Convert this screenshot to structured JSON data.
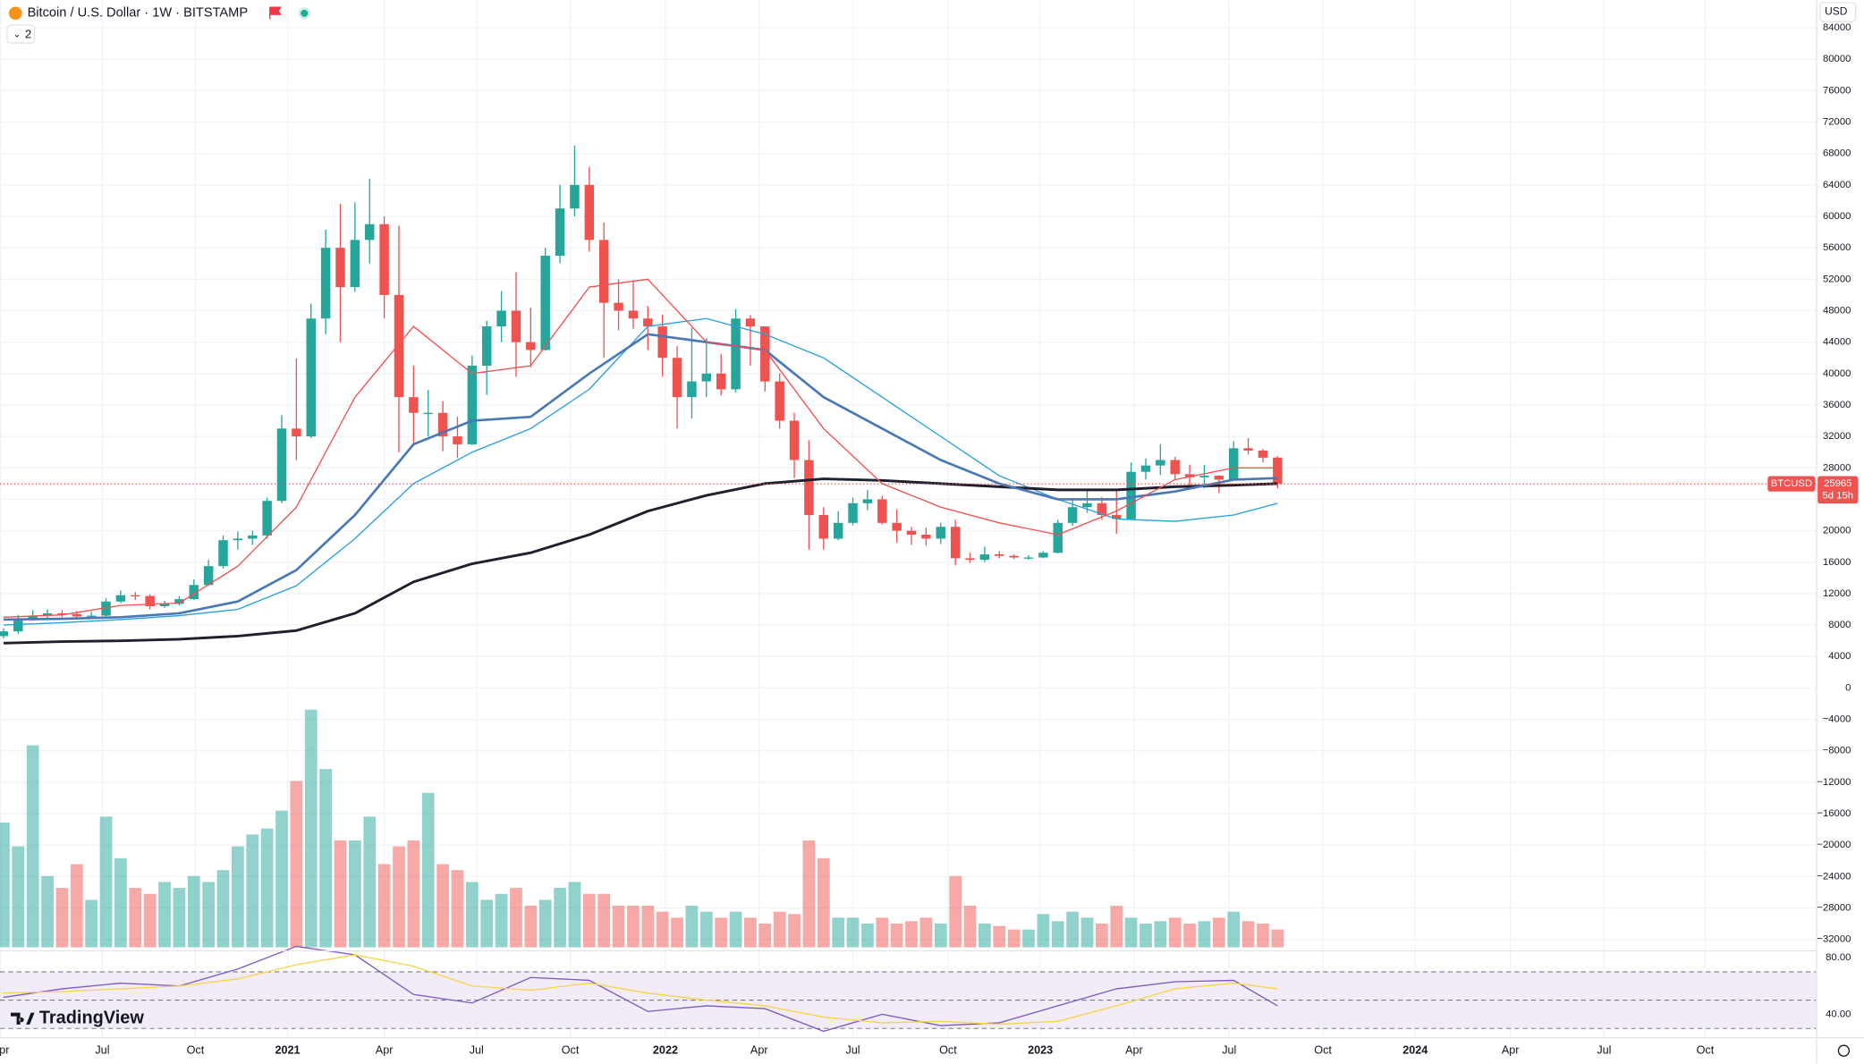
{
  "header": {
    "symbol": "Bitcoin / U.S. Dollar · 1W · BITSTAMP",
    "indicators": "2",
    "currency": "USD",
    "brand": "TradingView"
  },
  "chart_data": [
    {
      "type": "candlestick",
      "ticker": "BTCUSD",
      "countdown": "5d 15h",
      "up_color": "#26a69a",
      "down_color": "#ef5350",
      "grid": true,
      "open": [
        6600,
        7200,
        8800,
        9200,
        9500,
        9400,
        9100,
        9200,
        11000,
        11800,
        11700,
        10400,
        10700,
        11300,
        13100,
        15500,
        18800,
        19000,
        19400,
        23800,
        33000,
        32000,
        47000,
        56000,
        51000,
        57000,
        59000,
        50000,
        37000,
        35000,
        35000,
        32000,
        31000,
        41000,
        46000,
        48000,
        44000,
        43000,
        55000,
        61000,
        64000,
        57000,
        49000,
        48000,
        47000,
        46000,
        42000,
        37000,
        39000,
        40000,
        38000,
        47000,
        46000,
        39000,
        34000,
        29000,
        22000,
        19000,
        21000,
        23500,
        24000,
        21000,
        20000,
        19500,
        19000,
        20500,
        16500,
        16300,
        17000,
        16800,
        16600,
        16600,
        17200,
        21000,
        23000,
        23500,
        22000,
        21500,
        27500,
        28300,
        29000,
        27200,
        26800,
        27000,
        26500,
        30500,
        30200,
        29300
      ],
      "high": [
        7600,
        9300,
        9900,
        10000,
        9900,
        9800,
        9700,
        11400,
        12400,
        12200,
        11900,
        11100,
        11700,
        13800,
        16300,
        19400,
        19900,
        20000,
        24200,
        34700,
        41900,
        48900,
        58300,
        61600,
        61800,
        64800,
        60000,
        58800,
        41000,
        37900,
        36500,
        34500,
        42300,
        46700,
        50500,
        52900,
        48400,
        56000,
        64000,
        69000,
        66300,
        59200,
        52000,
        51900,
        48600,
        47500,
        43500,
        45800,
        44500,
        42500,
        48200,
        47400,
        46000,
        40000,
        35000,
        31500,
        23000,
        22500,
        24200,
        25200,
        24400,
        22700,
        20500,
        20400,
        21000,
        21400,
        17200,
        18000,
        17400,
        17000,
        16900,
        17400,
        21400,
        23900,
        25200,
        24300,
        25100,
        28700,
        29200,
        31000,
        29400,
        28400,
        28400,
        27100,
        31400,
        31800,
        30400,
        29500
      ],
      "low": [
        6300,
        6900,
        8600,
        8900,
        9000,
        8800,
        8900,
        9100,
        10800,
        11200,
        10000,
        10200,
        10500,
        11200,
        13000,
        15200,
        17600,
        18200,
        19000,
        23500,
        29000,
        31800,
        45000,
        44000,
        50400,
        54000,
        47000,
        30000,
        31000,
        32000,
        30100,
        29300,
        30900,
        37300,
        44000,
        39600,
        40800,
        42900,
        54000,
        60000,
        55500,
        42000,
        45500,
        45700,
        43000,
        39600,
        33000,
        34300,
        37000,
        37200,
        37600,
        41000,
        37700,
        33000,
        26700,
        17600,
        17600,
        18800,
        20700,
        22600,
        20800,
        18500,
        18200,
        18100,
        18300,
        15600,
        15900,
        16000,
        16500,
        16400,
        16300,
        16500,
        17100,
        20600,
        22300,
        21400,
        19600,
        21400,
        26500,
        27100,
        26500,
        25800,
        25400,
        24800,
        26500,
        29700,
        28700,
        25400
      ],
      "close": [
        7200,
        8800,
        9200,
        9500,
        9400,
        9100,
        9200,
        11000,
        11800,
        11700,
        10400,
        10700,
        11300,
        13100,
        15500,
        18800,
        19000,
        19400,
        23800,
        33000,
        32000,
        47000,
        56000,
        51000,
        57000,
        59000,
        50000,
        37000,
        35000,
        35000,
        32000,
        31000,
        41000,
        46000,
        48000,
        44000,
        43000,
        55000,
        61000,
        64000,
        57000,
        49000,
        48000,
        47000,
        46000,
        42000,
        37000,
        39000,
        40000,
        38000,
        47000,
        46000,
        39000,
        34000,
        29000,
        22000,
        19000,
        21000,
        23500,
        24000,
        21000,
        20000,
        19500,
        19000,
        20500,
        16500,
        16300,
        17000,
        16800,
        16600,
        16600,
        17200,
        21000,
        23000,
        23500,
        22000,
        21500,
        27500,
        28300,
        29000,
        27200,
        26800,
        27000,
        26500,
        30500,
        30200,
        29300,
        25965
      ],
      "volume": [
        105,
        85,
        170,
        60,
        50,
        70,
        40,
        110,
        75,
        50,
        45,
        55,
        50,
        60,
        55,
        65,
        85,
        95,
        100,
        115,
        140,
        200,
        150,
        90,
        90,
        110,
        70,
        85,
        90,
        130,
        70,
        65,
        55,
        40,
        45,
        50,
        35,
        40,
        50,
        55,
        45,
        45,
        35,
        35,
        35,
        30,
        25,
        35,
        30,
        25,
        30,
        25,
        20,
        30,
        28,
        90,
        75,
        25,
        25,
        20,
        25,
        20,
        22,
        25,
        20,
        60,
        35,
        20,
        18,
        15,
        15,
        28,
        22,
        30,
        25,
        20,
        35,
        25,
        20,
        22,
        25,
        20,
        22,
        25,
        30,
        22,
        20,
        15
      ],
      "vlim": [
        0,
        200
      ],
      "ma_x": [
        0,
        4,
        8,
        12,
        16,
        20,
        24,
        28,
        32,
        36,
        40,
        44,
        48,
        52,
        56,
        60,
        64,
        68,
        72,
        76,
        80,
        84,
        87
      ],
      "series": [
        {
          "color": "#26a0da",
          "values": [
            8000,
            8300,
            8700,
            9200,
            10000,
            13000,
            19000,
            26000,
            30000,
            33000,
            38000,
            46000,
            47000,
            45000,
            42000,
            37000,
            32000,
            27000,
            24000,
            21500,
            21200,
            22000,
            23500
          ]
        },
        {
          "color": "#1f1f2e",
          "values": [
            5700,
            5900,
            6000,
            6200,
            6600,
            7300,
            9500,
            13500,
            15800,
            17200,
            19500,
            22500,
            24500,
            26000,
            26600,
            26400,
            26000,
            25600,
            25200,
            25200,
            25600,
            25800,
            26000
          ]
        },
        {
          "color": "#4a78b5",
          "values": [
            8700,
            8800,
            9000,
            9500,
            11000,
            15000,
            22000,
            31000,
            34000,
            34500,
            40000,
            45000,
            44000,
            43000,
            37000,
            33000,
            29000,
            26000,
            24000,
            24000,
            25000,
            26500,
            26700
          ]
        },
        {
          "color": "#f05050",
          "values": [
            9000,
            9300,
            10500,
            10800,
            15500,
            23000,
            37000,
            46000,
            40000,
            41000,
            51000,
            52000,
            44000,
            43000,
            33000,
            26000,
            23000,
            21000,
            19500,
            22500,
            26500,
            28000,
            28000
          ]
        }
      ],
      "ylim": [
        -33000,
        87500
      ],
      "yticks": [
        {
          "value": -32000,
          "label": "−32000"
        },
        {
          "value": -28000,
          "label": "−28000"
        },
        {
          "value": -24000,
          "label": "−24000"
        },
        {
          "value": -20000,
          "label": "−20000"
        },
        {
          "value": -16000,
          "label": "−16000"
        },
        {
          "value": -12000,
          "label": "−12000"
        },
        {
          "value": -8000,
          "label": "−8000"
        },
        {
          "value": -4000,
          "label": "−4000"
        },
        0,
        4000,
        8000,
        12000,
        16000,
        20000,
        24000,
        28000,
        32000,
        36000,
        40000,
        44000,
        48000,
        52000,
        56000,
        60000,
        64000,
        68000,
        72000,
        76000,
        80000,
        84000
      ],
      "xlim": [
        -0.24,
        123.8
      ],
      "xticks": [
        {
          "value": -0.2,
          "label": "Apr"
        },
        {
          "value": 6.75,
          "label": "Jul"
        },
        {
          "value": 13.1,
          "label": "Oct"
        },
        {
          "value": 19.4,
          "label": "2021"
        },
        {
          "value": 26,
          "label": "Apr"
        },
        {
          "value": 32.3,
          "label": "Jul"
        },
        {
          "value": 38.7,
          "label": "Oct"
        },
        {
          "value": 45.2,
          "label": "2022"
        },
        {
          "value": 51.6,
          "label": "Apr"
        },
        {
          "value": 58,
          "label": "Jul"
        },
        {
          "value": 64.5,
          "label": "Oct"
        },
        {
          "value": 70.8,
          "label": "2023"
        },
        {
          "value": 77.2,
          "label": "Apr"
        },
        {
          "value": 83.7,
          "label": "Jul"
        },
        {
          "value": 90.1,
          "label": "Oct"
        },
        {
          "value": 96.4,
          "label": "2024"
        },
        {
          "value": 102.9,
          "label": "Apr"
        },
        {
          "value": 109.3,
          "label": "Jul"
        },
        {
          "value": 116.2,
          "label": "Oct"
        }
      ]
    },
    {
      "type": "line",
      "x": [
        0,
        4,
        8,
        12,
        16,
        20,
        24,
        28,
        32,
        36,
        40,
        44,
        48,
        52,
        56,
        60,
        64,
        68,
        72,
        76,
        80,
        84,
        87
      ],
      "series": [
        {
          "color": "#7e57c2",
          "values": [
            52,
            58,
            62,
            60,
            72,
            88,
            82,
            54,
            48,
            66,
            64,
            42,
            46,
            44,
            28,
            40,
            32,
            34,
            46,
            58,
            63,
            64,
            46
          ]
        },
        {
          "color": "#f5d547",
          "values": [
            55,
            56,
            58,
            60,
            65,
            75,
            82,
            74,
            60,
            57,
            62,
            55,
            50,
            46,
            38,
            34,
            35,
            33,
            35,
            46,
            58,
            62,
            58
          ]
        }
      ],
      "levels": [
        70,
        50,
        30
      ],
      "band_color": "#ede7f6",
      "ylim": [
        23.5,
        84.8
      ],
      "yticks": [
        {
          "value": 80,
          "label": "80.00"
        },
        {
          "value": 40,
          "label": "40.00"
        }
      ]
    }
  ]
}
